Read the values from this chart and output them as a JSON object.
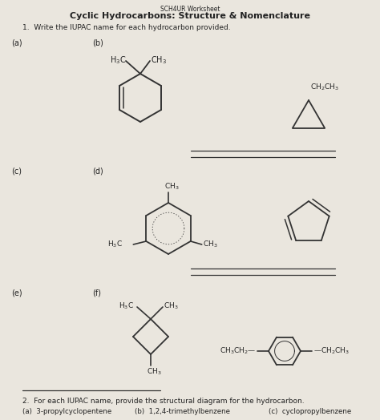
{
  "title_small": "SCH4UR Worksheet",
  "title_main": "Cyclic Hydrocarbons: Structure & Nomenclature",
  "q1_text": "1.  Write the IUPAC name for each hydrocarbon provided.",
  "q2_text": "2.  For each IUPAC name, provide the structural diagram for the hydrocarbon.",
  "q2_answers": [
    "(a)  3-propylcyclopentene",
    "(b)  1,2,4-trimethylbenzene",
    "(c)  cyclopropylbenzene"
  ],
  "bg_color": "#eae6de",
  "line_color": "#333333",
  "text_color": "#222222"
}
